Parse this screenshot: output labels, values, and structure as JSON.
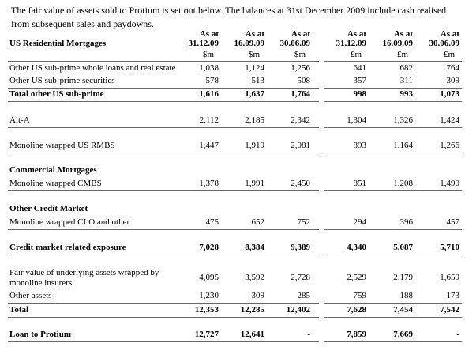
{
  "intro": "The fair value of assets sold to Protium is set out below. The balances at 31st December 2009 include cash realised from subsequent sales and paydowns.",
  "table": {
    "header_label": "US Residential Mortgages",
    "columns": [
      {
        "as_at": "As at",
        "date": "31.12.09",
        "unit": "$m"
      },
      {
        "as_at": "As at",
        "date": "16.09.09",
        "unit": "$m"
      },
      {
        "as_at": "As at",
        "date": "30.06.09",
        "unit": "$m"
      },
      {
        "as_at": "As at",
        "date": "31.12.09",
        "unit": "£m"
      },
      {
        "as_at": "As at",
        "date": "16.09.09",
        "unit": "£m"
      },
      {
        "as_at": "As at",
        "date": "30.06.09",
        "unit": "£m"
      }
    ],
    "rows": [
      {
        "label": "Other US sub-prime whole loans and real estate",
        "values": [
          "1,038",
          "1,124",
          "1,256",
          "641",
          "682",
          "764"
        ]
      },
      {
        "label": "Other US sub-prime securities",
        "values": [
          "578",
          "513",
          "508",
          "357",
          "311",
          "309"
        ]
      },
      {
        "label": "Total other US sub-prime",
        "values": [
          "1,616",
          "1,637",
          "1,764",
          "998",
          "993",
          "1,073"
        ]
      },
      {
        "label": "Alt-A",
        "values": [
          "2,112",
          "2,185",
          "2,342",
          "1,304",
          "1,326",
          "1,424"
        ]
      },
      {
        "label": "Monoline wrapped US RMBS",
        "values": [
          "1,447",
          "1,919",
          "2,081",
          "893",
          "1,164",
          "1,266"
        ]
      },
      {
        "label": "Commercial Mortgages"
      },
      {
        "label": "Monoline wrapped CMBS",
        "values": [
          "1,378",
          "1,991",
          "2,450",
          "851",
          "1,208",
          "1,490"
        ]
      },
      {
        "label": "Other Credit Market"
      },
      {
        "label": "Monoline wrapped CLO and other",
        "values": [
          "475",
          "652",
          "752",
          "294",
          "396",
          "457"
        ]
      },
      {
        "label": "Credit market related exposure",
        "values": [
          "7,028",
          "8,384",
          "9,389",
          "4,340",
          "5,087",
          "5,710"
        ]
      },
      {
        "label": "Fair value of underlying assets wrapped by monoline insurers",
        "values": [
          "4,095",
          "3,592",
          "2,728",
          "2,529",
          "2,179",
          "1,659"
        ]
      },
      {
        "label": "Other assets",
        "values": [
          "1,230",
          "309",
          "285",
          "759",
          "188",
          "173"
        ]
      },
      {
        "label": "Total",
        "values": [
          "12,353",
          "12,285",
          "12,402",
          "7,628",
          "7,454",
          "7,542"
        ]
      },
      {
        "label": "Loan to Protium",
        "values": [
          "12,727",
          "12,641",
          "-",
          "7,859",
          "7,669",
          "-"
        ]
      }
    ]
  }
}
